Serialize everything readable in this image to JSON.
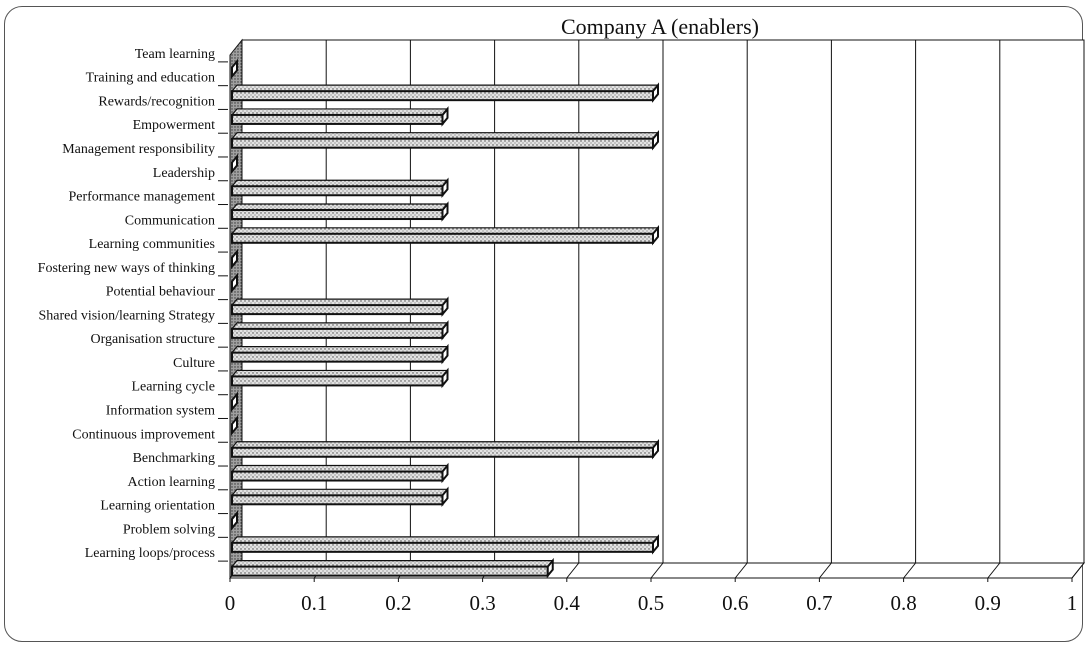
{
  "chart_data": {
    "type": "bar",
    "orientation": "horizontal",
    "style": "3d",
    "title": "Company A (enablers)",
    "xlabel": "",
    "ylabel": "",
    "xlim": [
      0,
      1
    ],
    "xticks": [
      "0",
      "0.1",
      "0.2",
      "0.3",
      "0.4",
      "0.5",
      "0.6",
      "0.7",
      "0.8",
      "0.9",
      "1"
    ],
    "grid": true,
    "legend": false,
    "categories": [
      "Team learning",
      "Training and education",
      "Rewards/recognition",
      "Empowerment",
      "Management responsibility",
      "Leadership",
      "Performance management",
      "Communication",
      "Learning communities",
      "Fostering new ways of thinking",
      "Potential behaviour",
      "Shared vision/learning Strategy",
      "Organisation structure",
      "Culture",
      "Learning cycle",
      "Information system",
      "Continuous improvement",
      "Benchmarking",
      "Action learning",
      "Learning orientation",
      "Problem solving",
      "Learning loops/process"
    ],
    "values": [
      0,
      0.5,
      0.25,
      0.5,
      0,
      0.25,
      0.25,
      0.5,
      0,
      0,
      0.25,
      0.25,
      0.25,
      0.25,
      0,
      0,
      0.5,
      0.25,
      0.25,
      0,
      0.5,
      0.375
    ],
    "colors": {
      "bar_fill": "#d8d8d8",
      "bar_stroke": "#111111",
      "wall": "#ffffff",
      "side_wall": "#9a9a9a"
    }
  }
}
